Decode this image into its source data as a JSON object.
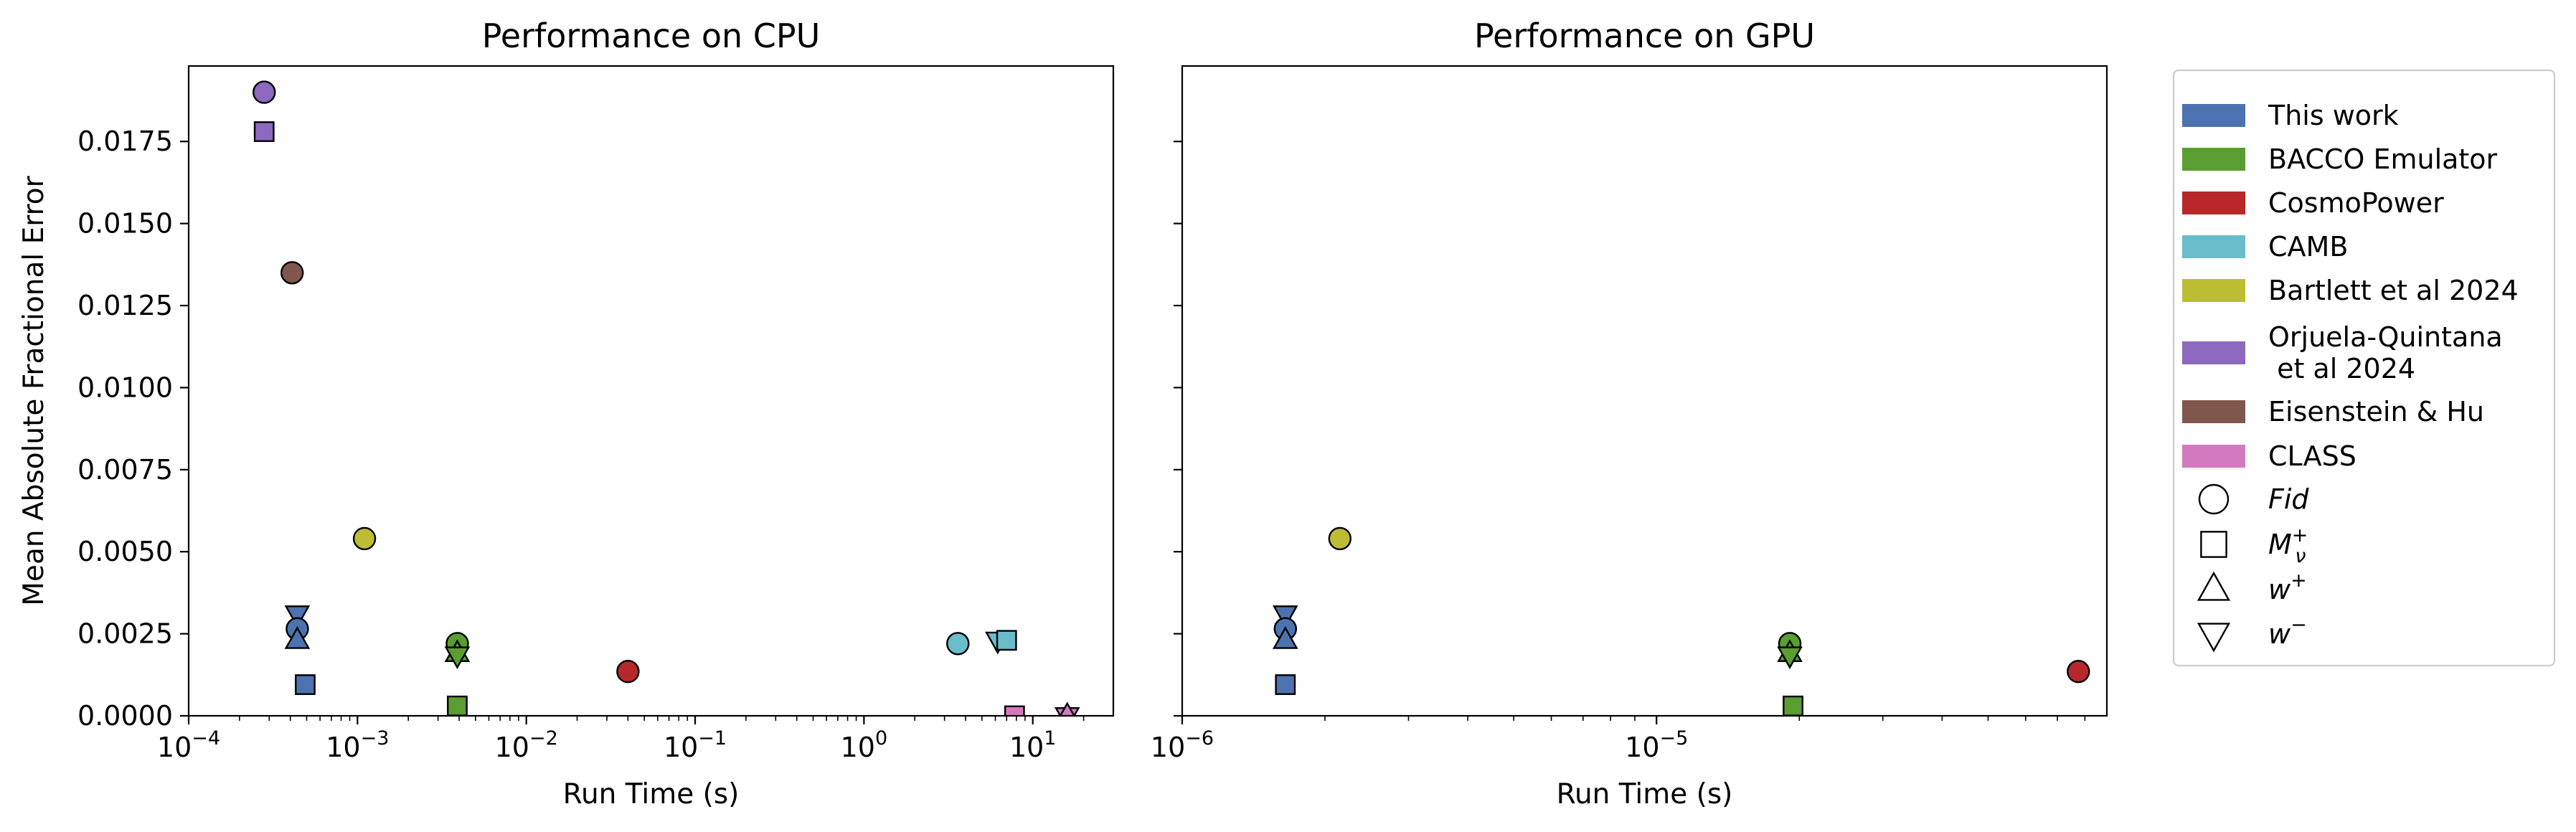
{
  "chart_data": [
    {
      "type": "scatter",
      "title": "Performance on CPU",
      "xlabel": "Run Time (s)",
      "ylabel": "Mean Absolute Fractional Error",
      "xscale": "log",
      "xlim": [
        0.0001,
        30
      ],
      "ylim": [
        0,
        0.0198
      ],
      "xticks": [
        0.0001,
        0.001,
        0.01,
        0.1,
        1,
        10
      ],
      "xtick_labels": [
        {
          "base": "10",
          "exp": "−4"
        },
        {
          "base": "10",
          "exp": "−3"
        },
        {
          "base": "10",
          "exp": "−2"
        },
        {
          "base": "10",
          "exp": "−1"
        },
        {
          "base": "10",
          "exp": "0"
        },
        {
          "base": "10",
          "exp": "1"
        }
      ],
      "yticks": [
        0,
        0.0025,
        0.005,
        0.0075,
        0.01,
        0.0125,
        0.015,
        0.0175
      ],
      "ytick_labels": [
        "0.0000",
        "0.0025",
        "0.0050",
        "0.0075",
        "0.0100",
        "0.0125",
        "0.0150",
        "0.0175"
      ],
      "grid": false,
      "points": [
        {
          "method": "Eisenstein & Hu",
          "cosmology": "Fid",
          "x": 0.00041,
          "y": 0.0135
        },
        {
          "method": "Orjuela-Quintana et al 2024",
          "cosmology": "Fid",
          "x": 0.00028,
          "y": 0.019
        },
        {
          "method": "Orjuela-Quintana et al 2024",
          "cosmology": "M_nu+",
          "x": 0.00028,
          "y": 0.0178
        },
        {
          "method": "This work",
          "cosmology": "w-",
          "x": 0.00044,
          "y": 0.0031
        },
        {
          "method": "This work",
          "cosmology": "Fid",
          "x": 0.00044,
          "y": 0.00265
        },
        {
          "method": "This work",
          "cosmology": "w+",
          "x": 0.00044,
          "y": 0.0023
        },
        {
          "method": "This work",
          "cosmology": "M_nu+",
          "x": 0.00049,
          "y": 0.00095
        },
        {
          "method": "Bartlett et al 2024",
          "cosmology": "Fid",
          "x": 0.0011,
          "y": 0.0054
        },
        {
          "method": "BACCO Emulator",
          "cosmology": "Fid",
          "x": 0.0039,
          "y": 0.0022
        },
        {
          "method": "BACCO Emulator",
          "cosmology": "w+",
          "x": 0.0039,
          "y": 0.0019
        },
        {
          "method": "BACCO Emulator",
          "cosmology": "w-",
          "x": 0.0039,
          "y": 0.00185
        },
        {
          "method": "BACCO Emulator",
          "cosmology": "M_nu+",
          "x": 0.0039,
          "y": 0.0003
        },
        {
          "method": "CosmoPower",
          "cosmology": "Fid",
          "x": 0.04,
          "y": 0.00135
        },
        {
          "method": "CAMB",
          "cosmology": "Fid",
          "x": 3.6,
          "y": 0.0022
        },
        {
          "method": "CAMB",
          "cosmology": "w-",
          "x": 6.2,
          "y": 0.0023
        },
        {
          "method": "CAMB",
          "cosmology": "M_nu+",
          "x": 7.0,
          "y": 0.0023
        },
        {
          "method": "CLASS",
          "cosmology": "M_nu+",
          "x": 7.8,
          "y": 0.0
        },
        {
          "method": "CLASS",
          "cosmology": "w-",
          "x": 16.0,
          "y": 0.0
        },
        {
          "method": "CLASS",
          "cosmology": "w+",
          "x": 16.0,
          "y": 0.0
        }
      ]
    },
    {
      "type": "scatter",
      "title": "Performance on GPU",
      "xlabel": "Run Time (s)",
      "ylabel": "",
      "xscale": "log",
      "xlim": [
        1e-06,
        8.9e-05
      ],
      "ylim": [
        0,
        0.0198
      ],
      "xticks": [
        1e-06,
        1e-05
      ],
      "xtick_labels": [
        {
          "base": "10",
          "exp": "−6"
        },
        {
          "base": "10",
          "exp": "−5"
        }
      ],
      "yticks": [
        0,
        0.0025,
        0.005,
        0.0075,
        0.01,
        0.0125,
        0.015,
        0.0175
      ],
      "ytick_labels": [],
      "grid": false,
      "points": [
        {
          "method": "This work",
          "cosmology": "w-",
          "x": 1.65e-06,
          "y": 0.0031
        },
        {
          "method": "This work",
          "cosmology": "Fid",
          "x": 1.65e-06,
          "y": 0.00265
        },
        {
          "method": "This work",
          "cosmology": "w+",
          "x": 1.65e-06,
          "y": 0.0023
        },
        {
          "method": "This work",
          "cosmology": "M_nu+",
          "x": 1.65e-06,
          "y": 0.00095
        },
        {
          "method": "Bartlett et al 2024",
          "cosmology": "Fid",
          "x": 2.15e-06,
          "y": 0.0054
        },
        {
          "method": "BACCO Emulator",
          "cosmology": "Fid",
          "x": 1.91e-05,
          "y": 0.0022
        },
        {
          "method": "BACCO Emulator",
          "cosmology": "w+",
          "x": 1.91e-05,
          "y": 0.0019
        },
        {
          "method": "BACCO Emulator",
          "cosmology": "w-",
          "x": 1.91e-05,
          "y": 0.00185
        },
        {
          "method": "BACCO Emulator",
          "cosmology": "M_nu+",
          "x": 1.94e-05,
          "y": 0.0003
        },
        {
          "method": "CosmoPower",
          "cosmology": "Fid",
          "x": 7.75e-05,
          "y": 0.00135
        }
      ]
    }
  ],
  "legend": {
    "placement": "right, outside axes",
    "methods": [
      {
        "key": "This work",
        "label": "This work",
        "color": "#4c72b0"
      },
      {
        "key": "BACCO Emulator",
        "label": "BACCO Emulator",
        "color": "#5a9e32"
      },
      {
        "key": "CosmoPower",
        "label": "CosmoPower",
        "color": "#b8282b"
      },
      {
        "key": "CAMB",
        "label": "CAMB",
        "color": "#6bbccb"
      },
      {
        "key": "Bartlett et al 2024",
        "label": "Bartlett et al 2024",
        "color": "#bcbd35"
      },
      {
        "key": "Orjuela-Quintana et al 2024",
        "label": "Orjuela-Quintana\n et al 2024",
        "color": "#8c68be"
      },
      {
        "key": "Eisenstein & Hu",
        "label": "Eisenstein & Hu",
        "color": "#80574d"
      },
      {
        "key": "CLASS",
        "label": "CLASS",
        "color": "#d27ac0"
      }
    ],
    "cosmologies": [
      {
        "key": "Fid",
        "shape": "circle",
        "label": {
          "base": "Fid"
        }
      },
      {
        "key": "M_nu+",
        "shape": "square",
        "label": {
          "base": "M",
          "sup": "+",
          "sub": "ν"
        }
      },
      {
        "key": "w+",
        "shape": "triangle-up",
        "label": {
          "base": "w",
          "sup": "+"
        }
      },
      {
        "key": "w-",
        "shape": "triangle-down",
        "label": {
          "base": "w",
          "sup": "−"
        }
      }
    ]
  }
}
